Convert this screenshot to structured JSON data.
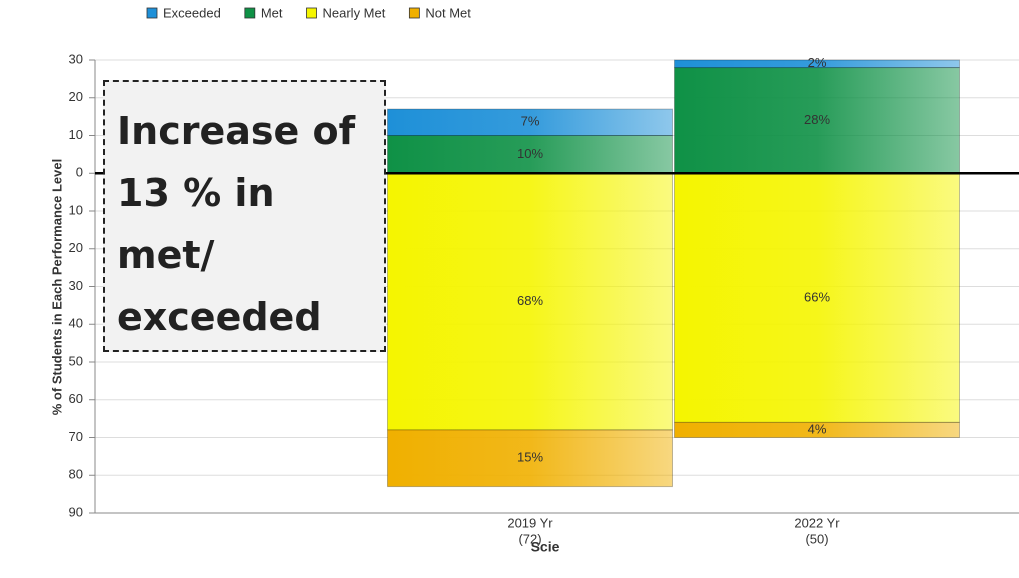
{
  "chart_data": {
    "type": "diverging_stacked_bar",
    "categories": [
      "2019 Yr",
      "2022 Yr"
    ],
    "category_counts": [
      "(72)",
      "(50)"
    ],
    "x_label": "Scie",
    "y_label": "% of Students in Each Performance Level",
    "annotation": "Increase of 13 % in met/ exceeded",
    "series": [
      {
        "name": "Exceeded",
        "color": "#1e90d8",
        "side": "above",
        "values": [
          7,
          2
        ],
        "value_labels": [
          "7%",
          "2%"
        ]
      },
      {
        "name": "Met",
        "color": "#0f9146",
        "side": "above",
        "values": [
          10,
          28
        ],
        "value_labels": [
          "10%",
          "28%"
        ]
      },
      {
        "name": "Nearly Met",
        "color": "#f5f500",
        "side": "below",
        "values": [
          68,
          66
        ],
        "value_labels": [
          "68%",
          "66%"
        ]
      },
      {
        "name": "Not Met",
        "color": "#f0b000",
        "side": "below",
        "values": [
          15,
          4
        ],
        "value_labels": [
          "15%",
          "4%"
        ]
      }
    ],
    "ylim": [
      -90,
      30
    ],
    "yticks": [
      30,
      20,
      10,
      0,
      {
        "value": -10,
        "label": "10"
      },
      {
        "value": -20,
        "label": "20"
      },
      {
        "value": -30,
        "label": "30"
      },
      {
        "value": -40,
        "label": "40"
      },
      {
        "value": -50,
        "label": "50"
      },
      {
        "value": -60,
        "label": "60"
      },
      {
        "value": -70,
        "label": "70"
      },
      {
        "value": -80,
        "label": "80"
      },
      {
        "value": -90,
        "label": "90"
      }
    ],
    "grid": true
  }
}
